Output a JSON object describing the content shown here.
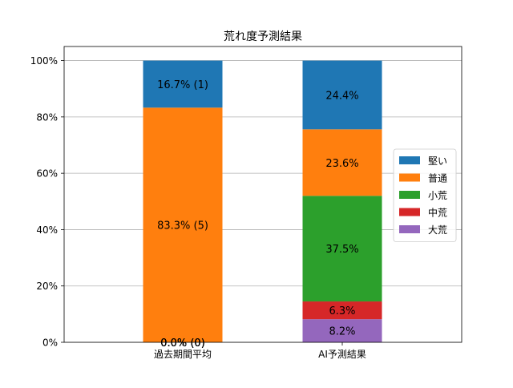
{
  "chart_data": {
    "type": "bar",
    "stacked": true,
    "title": "荒れ度予測結果",
    "xlabel": "",
    "ylabel": "",
    "ylim": [
      0,
      100
    ],
    "y_tick_labels": [
      "0%",
      "20%",
      "40%",
      "60%",
      "80%",
      "100%"
    ],
    "y_ticks": [
      0,
      20,
      40,
      60,
      80,
      100
    ],
    "grid": "y",
    "legend_position": "right",
    "categories": [
      "過去期間平均",
      "AI予測結果"
    ],
    "series": [
      {
        "name": "大荒",
        "color": "#9467bd",
        "values": [
          0.0,
          8.2
        ],
        "labels": [
          "0.0% (0)",
          "8.2%"
        ]
      },
      {
        "name": "中荒",
        "color": "#d62728",
        "values": [
          0.0,
          6.3
        ],
        "labels": [
          "0.0% (0)",
          "6.3%"
        ]
      },
      {
        "name": "小荒",
        "color": "#2ca02c",
        "values": [
          0.0,
          37.5
        ],
        "labels": [
          "0.0% (0)",
          "37.5%"
        ]
      },
      {
        "name": "普通",
        "color": "#ff7f0e",
        "values": [
          83.3,
          23.6
        ],
        "labels": [
          "83.3% (5)",
          "23.6%"
        ]
      },
      {
        "name": "堅い",
        "color": "#1f77b4",
        "values": [
          16.7,
          24.4
        ],
        "labels": [
          "16.7% (1)",
          "24.4%"
        ]
      }
    ],
    "legend_order": [
      "堅い",
      "普通",
      "小荒",
      "中荒",
      "大荒"
    ]
  }
}
